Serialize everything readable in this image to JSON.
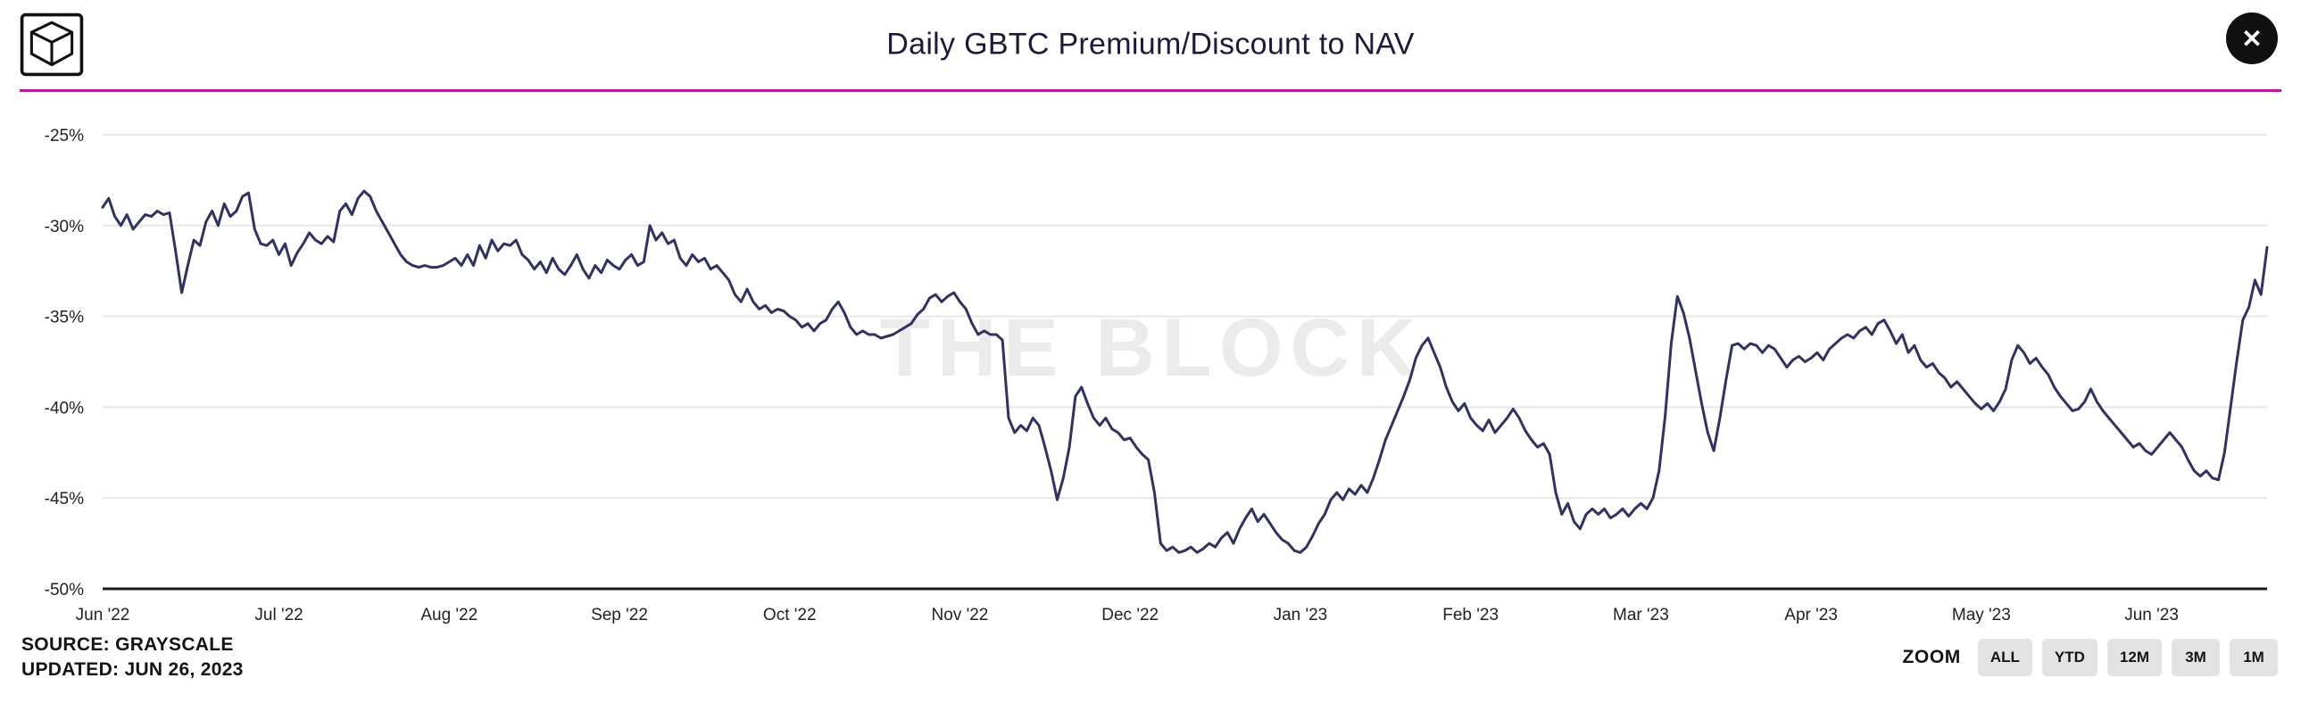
{
  "page": {
    "background": "#ffffff",
    "accent_rule_color": "#b51a9b"
  },
  "header": {
    "title": "Daily GBTC Premium/Discount to NAV",
    "logo": "the-block-logo",
    "close_glyph": "✕"
  },
  "chart_data": {
    "type": "line",
    "title": "Daily GBTC Premium/Discount to NAV",
    "xlabel": "",
    "ylabel": "",
    "ylim": [
      -50,
      -25
    ],
    "grid": "horizontal",
    "legend": "none",
    "line_color": "#32325f",
    "axis_color": "#1a1a1a",
    "gridline_color": "#e7e7e7",
    "tick_label_color": "#222222",
    "watermark": "THE BLOCK",
    "watermark_color": "#ebebeb",
    "y_ticks": [
      {
        "value": -25,
        "label": "-25%"
      },
      {
        "value": -30,
        "label": "-30%"
      },
      {
        "value": -35,
        "label": "-35%"
      },
      {
        "value": -40,
        "label": "-40%"
      },
      {
        "value": -45,
        "label": "-45%"
      },
      {
        "value": -50,
        "label": "-50%"
      }
    ],
    "series": [
      {
        "name": "GBTC premium/discount to NAV (%)",
        "months": [
          {
            "label": "Jun '22",
            "values": [
              -29.0,
              -28.5,
              -29.5,
              -30.0,
              -29.4,
              -30.2,
              -29.8,
              -29.4,
              -29.5,
              -29.2,
              -29.4,
              -29.3,
              -31.4,
              -33.7,
              -32.2,
              -30.8,
              -31.1,
              -29.8,
              -29.2,
              -30.0,
              -28.8,
              -29.5,
              -29.2,
              -28.4,
              -28.2,
              -30.2,
              -31.0,
              -31.1,
              -30.8
            ]
          },
          {
            "label": "Jul '22",
            "values": [
              -31.6,
              -31.0,
              -32.2,
              -31.5,
              -31.0,
              -30.4,
              -30.8,
              -31.0,
              -30.6,
              -30.9,
              -29.2,
              -28.8,
              -29.4,
              -28.5,
              -28.1,
              -28.4,
              -29.2,
              -29.8,
              -30.4,
              -31.0,
              -31.6,
              -32.0,
              -32.2,
              -32.3,
              -32.2,
              -32.3,
              -32.3,
              -32.2
            ]
          },
          {
            "label": "Aug '22",
            "values": [
              -32.0,
              -31.8,
              -32.2,
              -31.6,
              -32.2,
              -31.1,
              -31.8,
              -30.8,
              -31.4,
              -31.0,
              -31.1,
              -30.8,
              -31.6,
              -31.9,
              -32.4,
              -32.0,
              -32.6,
              -31.8,
              -32.4,
              -32.7,
              -32.2,
              -31.6,
              -32.4,
              -32.9,
              -32.2,
              -32.6,
              -31.9,
              -32.2
            ]
          },
          {
            "label": "Sep '22",
            "values": [
              -32.4,
              -31.9,
              -31.6,
              -32.2,
              -32.0,
              -30.0,
              -30.8,
              -30.4,
              -31.0,
              -30.8,
              -31.8,
              -32.2,
              -31.6,
              -32.0,
              -31.8,
              -32.4,
              -32.2,
              -32.6,
              -33.0,
              -33.8,
              -34.2,
              -33.5,
              -34.2,
              -34.6,
              -34.4,
              -34.8,
              -34.6,
              -34.7
            ]
          },
          {
            "label": "Oct '22",
            "values": [
              -35.0,
              -35.2,
              -35.6,
              -35.4,
              -35.8,
              -35.4,
              -35.2,
              -34.6,
              -34.2,
              -34.8,
              -35.6,
              -36.0,
              -35.8,
              -36.0,
              -36.0,
              -36.2,
              -36.1,
              -36.0,
              -35.8,
              -35.6,
              -35.4,
              -34.9,
              -34.6,
              -34.0,
              -33.8,
              -34.2,
              -33.9,
              -33.7
            ]
          },
          {
            "label": "Nov '22",
            "values": [
              -34.2,
              -34.6,
              -35.4,
              -36.0,
              -35.8,
              -36.0,
              -36.0,
              -36.3,
              -40.6,
              -41.4,
              -41.0,
              -41.3,
              -40.6,
              -41.0,
              -42.2,
              -43.5,
              -45.1,
              -43.9,
              -42.2,
              -39.4,
              -38.9,
              -39.8,
              -40.6,
              -41.0,
              -40.6,
              -41.2,
              -41.4,
              -41.8
            ]
          },
          {
            "label": "Dec '22",
            "values": [
              -41.7,
              -42.2,
              -42.6,
              -42.9,
              -44.7,
              -47.5,
              -47.9,
              -47.7,
              -48.0,
              -47.9,
              -47.7,
              -48.0,
              -47.8,
              -47.5,
              -47.7,
              -47.2,
              -46.9,
              -47.5,
              -46.7,
              -46.1,
              -45.6,
              -46.3,
              -45.9,
              -46.4,
              -46.9,
              -47.3,
              -47.5,
              -47.9
            ]
          },
          {
            "label": "Jan '23",
            "values": [
              -48.0,
              -47.7,
              -47.1,
              -46.4,
              -45.9,
              -45.1,
              -44.7,
              -45.1,
              -44.5,
              -44.8,
              -44.3,
              -44.7,
              -43.9,
              -42.9,
              -41.8,
              -41.0,
              -40.2,
              -39.4,
              -38.5,
              -37.3,
              -36.6,
              -36.2,
              -37.0,
              -37.8,
              -38.9,
              -39.7,
              -40.2,
              -39.8
            ]
          },
          {
            "label": "Feb '23",
            "values": [
              -40.6,
              -41.0,
              -41.3,
              -40.7,
              -41.4,
              -41.0,
              -40.6,
              -40.1,
              -40.6,
              -41.3,
              -41.8,
              -42.2,
              -42.0,
              -42.6,
              -44.7,
              -45.9,
              -45.3,
              -46.3,
              -46.7,
              -45.9,
              -45.6,
              -45.9,
              -45.6,
              -46.1,
              -45.9,
              -45.6,
              -46.0,
              -45.6
            ]
          },
          {
            "label": "Mar '23",
            "values": [
              -45.3,
              -45.6,
              -45.0,
              -43.5,
              -40.5,
              -36.5,
              -33.9,
              -34.8,
              -36.2,
              -38.0,
              -39.8,
              -41.4,
              -42.4,
              -40.6,
              -38.5,
              -36.6,
              -36.5,
              -36.8,
              -36.5,
              -36.6,
              -37.0,
              -36.6,
              -36.8,
              -37.3,
              -37.8,
              -37.4,
              -37.2,
              -37.5
            ]
          },
          {
            "label": "Apr '23",
            "values": [
              -37.3,
              -37.0,
              -37.4,
              -36.8,
              -36.5,
              -36.2,
              -36.0,
              -36.2,
              -35.8,
              -35.6,
              -36.0,
              -35.4,
              -35.2,
              -35.8,
              -36.5,
              -36.0,
              -37.0,
              -36.6,
              -37.4,
              -37.8,
              -37.6,
              -38.1,
              -38.4,
              -38.9,
              -38.6,
              -39.0,
              -39.4,
              -39.8
            ]
          },
          {
            "label": "May '23",
            "values": [
              -40.1,
              -39.8,
              -40.2,
              -39.7,
              -39.0,
              -37.4,
              -36.6,
              -37.0,
              -37.6,
              -37.3,
              -37.8,
              -38.2,
              -38.9,
              -39.4,
              -39.8,
              -40.2,
              -40.1,
              -39.7,
              -39.0,
              -39.7,
              -40.2,
              -40.6,
              -41.0,
              -41.4,
              -41.8,
              -42.2,
              -42.0,
              -42.4
            ]
          },
          {
            "label": "Jun '23",
            "values": [
              -42.6,
              -42.2,
              -41.8,
              -41.4,
              -41.8,
              -42.2,
              -42.9,
              -43.5,
              -43.8,
              -43.5,
              -43.9,
              -44.0,
              -42.5,
              -40.0,
              -37.5,
              -35.2,
              -34.5,
              -33.0,
              -33.8,
              -31.2
            ]
          }
        ]
      }
    ]
  },
  "footer": {
    "source": "SOURCE: GRAYSCALE",
    "updated": "UPDATED: JUN 26, 2023",
    "zoom_label": "ZOOM",
    "zoom_buttons": [
      "ALL",
      "YTD",
      "12M",
      "3M",
      "1M"
    ]
  }
}
